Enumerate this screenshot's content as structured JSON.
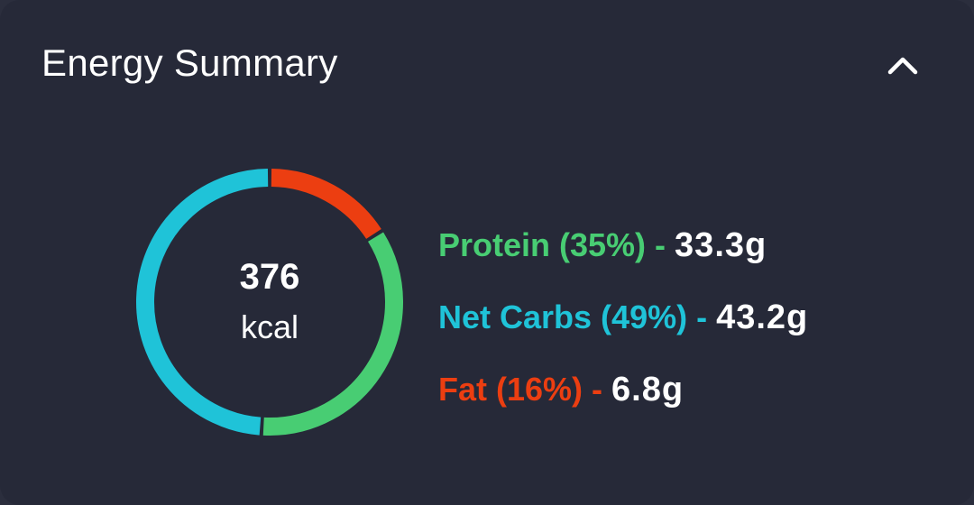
{
  "card": {
    "title": "Energy Summary",
    "collapse_icon": "chevron-up-icon"
  },
  "energy": {
    "kcal_value": "376",
    "kcal_unit": "kcal"
  },
  "colors": {
    "protein": "#48cd73",
    "net_carbs": "#1fc3d8",
    "fat": "#ec3e11",
    "background": "#262938",
    "text": "#ffffff"
  },
  "macros": [
    {
      "label": "Protein (35%) -",
      "value": "33.3g",
      "percent": 35,
      "color": "#48cd73"
    },
    {
      "label": "Net Carbs (49%) -",
      "value": "43.2g",
      "percent": 49,
      "color": "#1fc3d8"
    },
    {
      "label": "Fat (16%) -",
      "value": "6.8g",
      "percent": 16,
      "color": "#ec3e11"
    }
  ],
  "ring_order": [
    "fat",
    "protein",
    "net_carbs"
  ]
}
